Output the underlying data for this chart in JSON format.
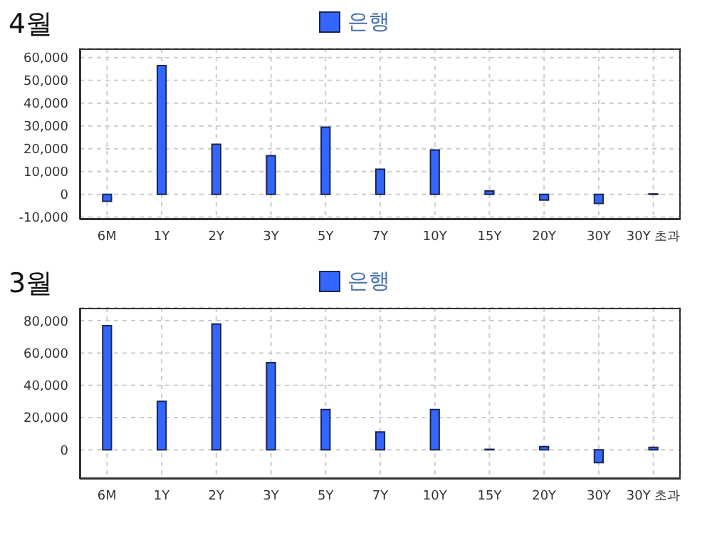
{
  "chart_data": [
    {
      "type": "bar",
      "title": "4월",
      "categories": [
        "6M",
        "1Y",
        "2Y",
        "3Y",
        "5Y",
        "7Y",
        "10Y",
        "15Y",
        "20Y",
        "30Y",
        "30Y 초과"
      ],
      "series": [
        {
          "name": "은행",
          "color": "#3366ff",
          "values": [
            -3000,
            56500,
            22000,
            17000,
            29500,
            11000,
            19500,
            1500,
            -2500,
            -4000,
            200
          ]
        }
      ],
      "ylim": [
        -11000,
        64000
      ],
      "yticks": [
        {
          "value": -10000,
          "label": "-10,000"
        },
        {
          "value": 0,
          "label": "0"
        },
        {
          "value": 10000,
          "label": "10,000"
        },
        {
          "value": 20000,
          "label": "20,000"
        },
        {
          "value": 30000,
          "label": "30,000"
        },
        {
          "value": 40000,
          "label": "40,000"
        },
        {
          "value": 50000,
          "label": "50,000"
        },
        {
          "value": 60000,
          "label": "60,000"
        }
      ],
      "grid": true,
      "legend": "top"
    },
    {
      "type": "bar",
      "title": "3월",
      "categories": [
        "6M",
        "1Y",
        "2Y",
        "3Y",
        "5Y",
        "7Y",
        "10Y",
        "15Y",
        "20Y",
        "30Y",
        "30Y 초과"
      ],
      "series": [
        {
          "name": "은행",
          "color": "#3366ff",
          "values": [
            77000,
            30000,
            78000,
            54000,
            25000,
            11000,
            25000,
            300,
            2000,
            -8000,
            1500
          ]
        }
      ],
      "ylim": [
        -18000,
        88000
      ],
      "yticks": [
        {
          "value": 0,
          "label": "0"
        },
        {
          "value": 20000,
          "label": "20,000"
        },
        {
          "value": 40000,
          "label": "40,000"
        },
        {
          "value": 60000,
          "label": "60,000"
        },
        {
          "value": 80000,
          "label": "80,000"
        }
      ],
      "grid": true,
      "legend": "top"
    }
  ]
}
